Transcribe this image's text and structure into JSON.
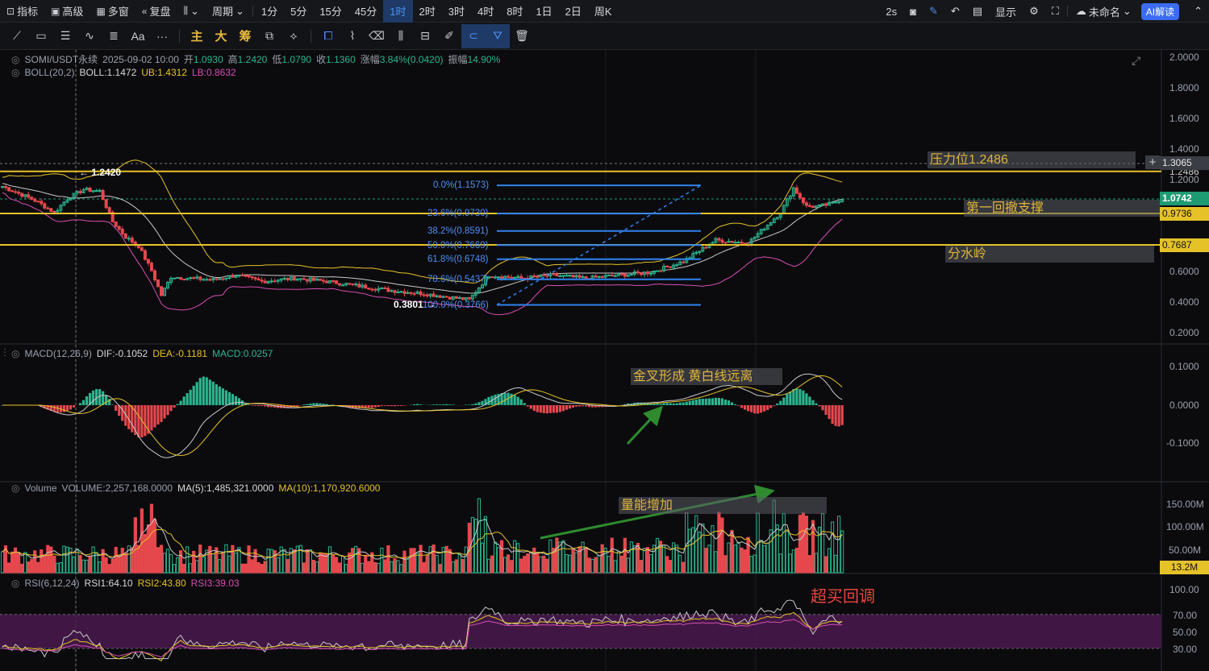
{
  "toolbar": {
    "items": [
      {
        "icon": "chart-line-icon",
        "glyph": "⊡",
        "label": "指标"
      },
      {
        "icon": "advanced-icon",
        "glyph": "▣",
        "label": "高级"
      },
      {
        "icon": "multi-window-icon",
        "glyph": "▦",
        "label": "多窗"
      },
      {
        "icon": "replay-icon",
        "glyph": "«",
        "label": "复盘"
      }
    ],
    "chart_type_glyph": "⫼",
    "period_label": "周期",
    "timeframes": [
      "1分",
      "5分",
      "15分",
      "45分",
      "1时",
      "2时",
      "3时",
      "4时",
      "8时",
      "1日",
      "2日",
      "周K"
    ],
    "active_timeframe": "1时",
    "right": {
      "refresh": "2s",
      "display": "显示",
      "account": "未命名",
      "ai": "AI解读"
    }
  },
  "drawbar": {
    "main_label": "主",
    "big_label": "大",
    "chip_label": "筹",
    "text_label": "Aa",
    "more_label": "···"
  },
  "legend": {
    "symbol": "SOMI/USDT永续",
    "datetime": "2025-09-02 10:00",
    "open_label": "开",
    "open": "1.0930",
    "high_label": "高",
    "high": "1.2420",
    "low_label": "低",
    "low": "1.0790",
    "close_label": "收",
    "close": "1.1360",
    "change_label": "涨幅",
    "change": "3.84%(0.0420)",
    "amplitude_label": "振幅",
    "amplitude": "14.90%",
    "boll_name": "BOLL(20,2)",
    "boll": "BOLL:1.1472",
    "ub": "UB:1.4312",
    "lb": "LB:0.8632",
    "macd_name": "MACD(12,26,9)",
    "dif": "DIF:-0.1052",
    "dea": "DEA:-0.1181",
    "macd": "MACD:0.0257",
    "vol_name": "Volume",
    "vol": "VOLUME:2,257,168.0000",
    "ma5": "MA(5):1,485,321.0000",
    "ma10": "MA(10):1,170,920.6000",
    "rsi_name": "RSI(6,12,24)",
    "rsi1": "RSI1:64.10",
    "rsi2": "RSI2:43.80",
    "rsi3": "RSI3:39.03"
  },
  "price_axis": [
    "2.0000",
    "1.8000",
    "1.6000",
    "1.4000",
    "1.2000",
    "0.6000",
    "0.4000",
    "0.2000"
  ],
  "price_axis_overlap": [
    "1.2486"
  ],
  "price_tags": {
    "crosshair": "1.3065",
    "current": "1.0742",
    "line_a": "0.9736",
    "line_b": "0.7687"
  },
  "macd_axis": [
    "0.1000",
    "0.0000",
    "-0.1000"
  ],
  "vol_axis": [
    "150.00M",
    "100.00M",
    "50.00M"
  ],
  "vol_tag": "13.2M",
  "rsi_axis": [
    "100.00",
    "70.00",
    "50.00",
    "30.00"
  ],
  "markers": {
    "high": "1.2420",
    "low": "0.3801"
  },
  "fib_levels": [
    {
      "label": "0.0%(1.1573)",
      "price": 1.1573
    },
    {
      "label": "23.6%(0.9730)",
      "price": 0.973
    },
    {
      "label": "38.2%(0.8591)",
      "price": 0.8591
    },
    {
      "label": "50.0%(0.7669)",
      "price": 0.7669
    },
    {
      "label": "61.8%(0.6748)",
      "price": 0.6748
    },
    {
      "label": "78.6%(0.5437)",
      "price": 0.5437
    },
    {
      "label": "100.0%(0.3766)",
      "price": 0.3766
    }
  ],
  "annotations": {
    "resistance": "压力位1.2486",
    "first_pullback": "第一回撤支撑",
    "watershed": "分水岭",
    "golden_cross": "金叉形成 黄白线远离",
    "volume_up": "量能增加",
    "overbought": "超买回调"
  },
  "horizontal_lines": {
    "resistance": 1.2486,
    "support": 0.9736,
    "watershed": 0.7687,
    "color": "#e6c229"
  },
  "colors": {
    "up": "#2bb58f",
    "down": "#e5484d",
    "boll_mid": "#c9c9c9",
    "boll_ub": "#e6c229",
    "boll_lb": "#d64fb2",
    "fib": "#2f82ee",
    "rsi_band": "#4a1a4d",
    "arrow": "#2e8b2e"
  }
}
